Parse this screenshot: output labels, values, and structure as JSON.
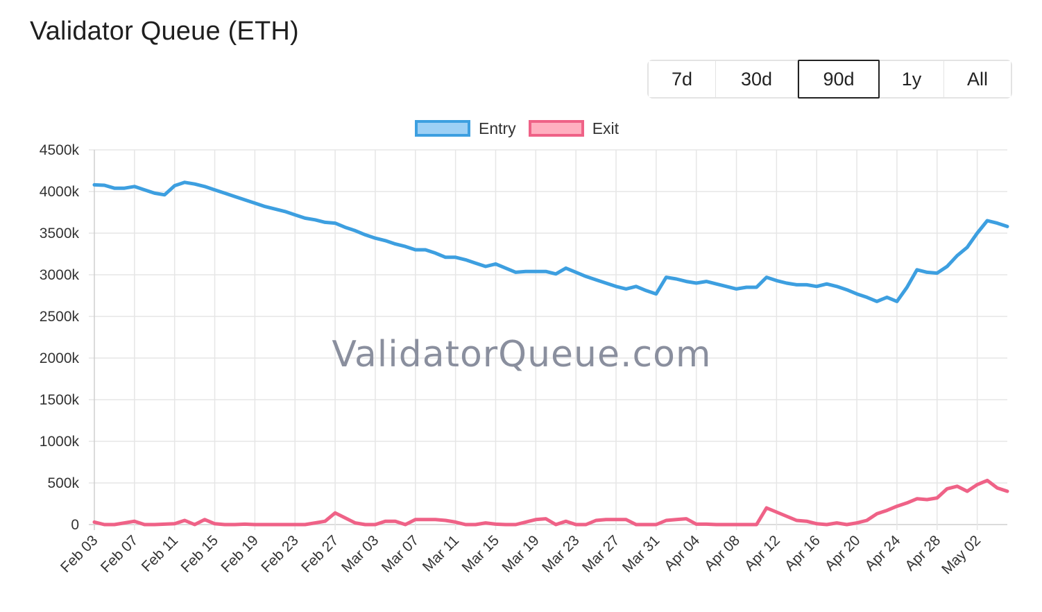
{
  "header": {
    "title": "Validator Queue (ETH)"
  },
  "range_buttons": [
    "7d",
    "30d",
    "90d",
    "1y",
    "All"
  ],
  "active_range": "90d",
  "watermark": "ValidatorQueue.com",
  "colors": {
    "entry": "#3d9fe0",
    "entry_fill": "#9dd0f5",
    "exit": "#ef6287",
    "exit_fill": "#ffb0c0",
    "grid": "#e6e6e6"
  },
  "chart_data": {
    "type": "line",
    "title": "",
    "xlabel": "",
    "ylabel": "",
    "ylim": [
      0,
      4500000
    ],
    "y_tick_labels": [
      "0",
      "500k",
      "1000k",
      "1500k",
      "2000k",
      "2500k",
      "3000k",
      "3500k",
      "4000k",
      "4500k"
    ],
    "x_tick_labels": [
      "Feb 03",
      "Feb 07",
      "Feb 11",
      "Feb 15",
      "Feb 19",
      "Feb 23",
      "Feb 27",
      "Mar 03",
      "Mar 07",
      "Mar 11",
      "Mar 15",
      "Mar 19",
      "Mar 23",
      "Mar 27",
      "Mar 31",
      "Apr 04",
      "Apr 08",
      "Apr 12",
      "Apr 16",
      "Apr 20",
      "Apr 24",
      "Apr 28",
      "May 02"
    ],
    "grid": true,
    "legend_position": "top-center",
    "series": [
      {
        "name": "Entry",
        "values": [
          4080000,
          4075000,
          4040000,
          4040000,
          4060000,
          4020000,
          3980000,
          3960000,
          4070000,
          4110000,
          4090000,
          4060000,
          4020000,
          3980000,
          3940000,
          3900000,
          3860000,
          3820000,
          3790000,
          3760000,
          3720000,
          3680000,
          3660000,
          3630000,
          3620000,
          3570000,
          3530000,
          3480000,
          3440000,
          3410000,
          3370000,
          3340000,
          3300000,
          3300000,
          3260000,
          3210000,
          3210000,
          3180000,
          3140000,
          3100000,
          3130000,
          3080000,
          3030000,
          3040000,
          3040000,
          3040000,
          3010000,
          3080000,
          3030000,
          2980000,
          2940000,
          2900000,
          2860000,
          2830000,
          2860000,
          2810000,
          2770000,
          2970000,
          2950000,
          2920000,
          2900000,
          2920000,
          2890000,
          2860000,
          2830000,
          2850000,
          2850000,
          2970000,
          2930000,
          2900000,
          2880000,
          2880000,
          2860000,
          2890000,
          2860000,
          2820000,
          2770000,
          2730000,
          2680000,
          2730000,
          2680000,
          2850000,
          3060000,
          3030000,
          3020000,
          3100000,
          3230000,
          3330000,
          3500000,
          3650000,
          3620000,
          3580000
        ],
        "color": "#3d9fe0"
      },
      {
        "name": "Exit",
        "values": [
          30000,
          0,
          0,
          20000,
          40000,
          0,
          0,
          5000,
          10000,
          50000,
          0,
          60000,
          10000,
          0,
          0,
          5000,
          0,
          0,
          0,
          0,
          0,
          0,
          20000,
          40000,
          140000,
          80000,
          20000,
          0,
          0,
          40000,
          40000,
          0,
          60000,
          60000,
          60000,
          50000,
          30000,
          0,
          0,
          20000,
          5000,
          0,
          0,
          30000,
          60000,
          70000,
          0,
          40000,
          0,
          0,
          50000,
          60000,
          60000,
          60000,
          0,
          0,
          0,
          50000,
          60000,
          70000,
          5000,
          5000,
          0,
          0,
          0,
          0,
          0,
          200000,
          150000,
          100000,
          50000,
          40000,
          10000,
          0,
          20000,
          0,
          20000,
          50000,
          130000,
          170000,
          220000,
          260000,
          310000,
          300000,
          320000,
          430000,
          460000,
          400000,
          480000,
          530000,
          440000,
          400000
        ],
        "color": "#ef6287"
      }
    ]
  }
}
